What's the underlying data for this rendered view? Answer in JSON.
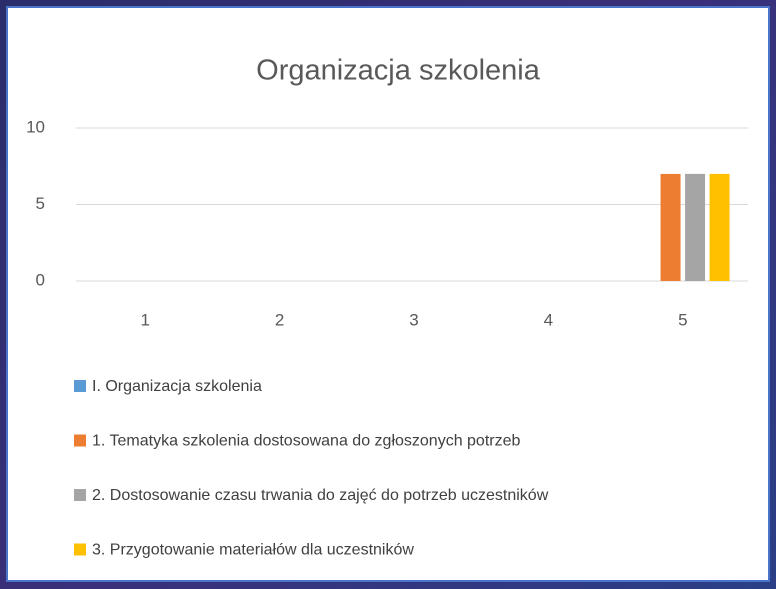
{
  "chart_data": {
    "type": "bar",
    "title": "Organizacja szkolenia",
    "categories": [
      "1",
      "2",
      "3",
      "4",
      "5"
    ],
    "series": [
      {
        "name": "I. Organizacja szkolenia",
        "color": "#5b9bd5",
        "values": [
          0,
          0,
          0,
          0,
          0
        ]
      },
      {
        "name": "1. Tematyka szkolenia dostosowana do zgłoszonych potrzeb",
        "color": "#ed7d31",
        "values": [
          0,
          0,
          0,
          0,
          7
        ]
      },
      {
        "name": "2. Dostosowanie czasu trwania do zajęć do potrzeb uczestników",
        "color": "#a5a5a5",
        "values": [
          0,
          0,
          0,
          0,
          7
        ]
      },
      {
        "name": "3. Przygotowanie materiałów dla uczestników",
        "color": "#ffc000",
        "values": [
          0,
          0,
          0,
          0,
          7
        ]
      }
    ],
    "ylim": [
      0,
      10
    ],
    "yticks": [
      0,
      5,
      10
    ],
    "grid": true,
    "legend": "bottom"
  }
}
